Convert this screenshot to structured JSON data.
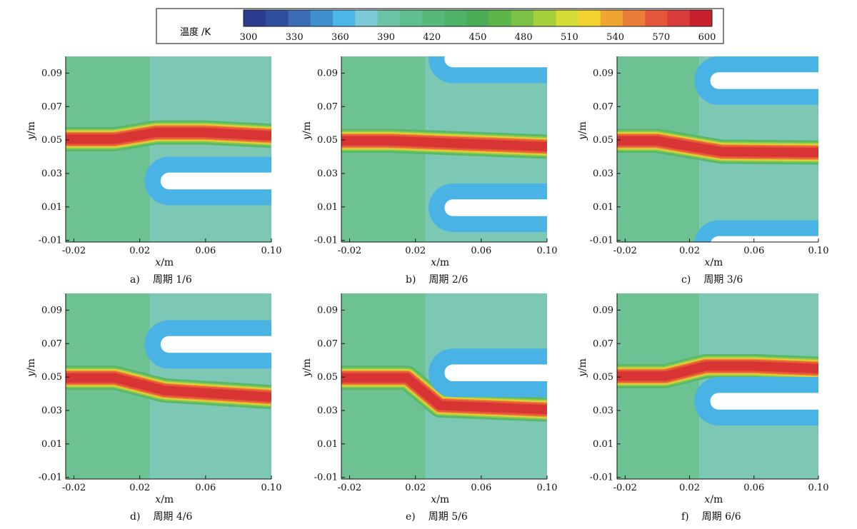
{
  "colorbar": {
    "title": "温度 /K",
    "ticks": [
      "300",
      "330",
      "360",
      "390",
      "420",
      "450",
      "480",
      "510",
      "540",
      "570",
      "600"
    ],
    "range": [
      300,
      600
    ],
    "colors": [
      "#2b3a8c",
      "#2f4f9e",
      "#3c6cb8",
      "#3f8fd0",
      "#4cb6e6",
      "#7cc9d8",
      "#6cc4a6",
      "#5fbf8f",
      "#56b97a",
      "#4db266",
      "#48ad55",
      "#5cb64a",
      "#7bc143",
      "#a6cf3c",
      "#d6dc36",
      "#f2d22c",
      "#f0a532",
      "#ea7d37",
      "#e4563a",
      "#d93a3a",
      "#c8202c"
    ]
  },
  "axes": {
    "x_label": "x",
    "x_unit": "/m",
    "y_label": "y",
    "y_unit": "/m",
    "x_ticks": [
      "-0.02",
      "0.02",
      "0.06",
      "0.10"
    ],
    "y_ticks": [
      "0.09",
      "0.07",
      "0.05",
      "0.03",
      "0.01",
      "-0.01"
    ],
    "xlim": [
      -0.025,
      0.1
    ],
    "ylim": [
      -0.011,
      0.1
    ]
  },
  "chart_data": [
    {
      "type": "heatmap",
      "caption_letter": "a)",
      "caption_text": "周期 1/6",
      "plate": {
        "tip_x": 0.023,
        "y_center": 0.0255,
        "thickness": 0.0095,
        "half_gap": 0.005
      },
      "jet": [
        [
          -0.025,
          0.0505
        ],
        [
          0.005,
          0.0505
        ],
        [
          0.03,
          0.0545
        ],
        [
          0.06,
          0.0545
        ],
        [
          0.1,
          0.0525
        ]
      ]
    },
    {
      "type": "heatmap",
      "caption_letter": "b)",
      "caption_text": "周期 2/6",
      "plate": [
        {
          "tip_x": 0.028,
          "y_center": 0.0985,
          "thickness": 0.0095,
          "half_gap": 0.005
        },
        {
          "tip_x": 0.028,
          "y_center": 0.0095,
          "thickness": 0.0095,
          "half_gap": 0.005
        }
      ],
      "jet": [
        [
          -0.025,
          0.0495
        ],
        [
          0.005,
          0.0495
        ],
        [
          0.06,
          0.0475
        ],
        [
          0.1,
          0.046
        ]
      ]
    },
    {
      "type": "heatmap",
      "caption_letter": "c)",
      "caption_text": "周期 3/6",
      "plate": [
        {
          "tip_x": 0.023,
          "y_center": 0.0855,
          "thickness": 0.0095,
          "half_gap": 0.005
        },
        {
          "tip_x": 0.023,
          "y_center": -0.0125,
          "thickness": 0.0095,
          "half_gap": 0.005
        }
      ],
      "jet": [
        [
          -0.025,
          0.0495
        ],
        [
          0.0,
          0.0495
        ],
        [
          0.04,
          0.043
        ],
        [
          0.1,
          0.0425
        ]
      ]
    },
    {
      "type": "heatmap",
      "caption_letter": "d)",
      "caption_text": "周期 4/6",
      "plate": {
        "tip_x": 0.023,
        "y_center": 0.0695,
        "thickness": 0.0095,
        "half_gap": 0.005
      },
      "jet": [
        [
          -0.025,
          0.0495
        ],
        [
          0.005,
          0.0495
        ],
        [
          0.035,
          0.042
        ],
        [
          0.1,
          0.038
        ]
      ]
    },
    {
      "type": "heatmap",
      "caption_letter": "e)",
      "caption_text": "周期 5/6",
      "plate": {
        "tip_x": 0.028,
        "y_center": 0.0525,
        "thickness": 0.0095,
        "half_gap": 0.005
      },
      "jet": [
        [
          -0.025,
          0.0495
        ],
        [
          0.015,
          0.0495
        ],
        [
          0.035,
          0.033
        ],
        [
          0.1,
          0.0305
        ]
      ]
    },
    {
      "type": "heatmap",
      "caption_letter": "f)",
      "caption_text": "周期 6/6",
      "plate": {
        "tip_x": 0.023,
        "y_center": 0.0355,
        "thickness": 0.0095,
        "half_gap": 0.005
      },
      "jet": [
        [
          -0.025,
          0.0505
        ],
        [
          0.005,
          0.0505
        ],
        [
          0.03,
          0.0565
        ],
        [
          0.06,
          0.0565
        ],
        [
          0.1,
          0.055
        ]
      ]
    }
  ]
}
